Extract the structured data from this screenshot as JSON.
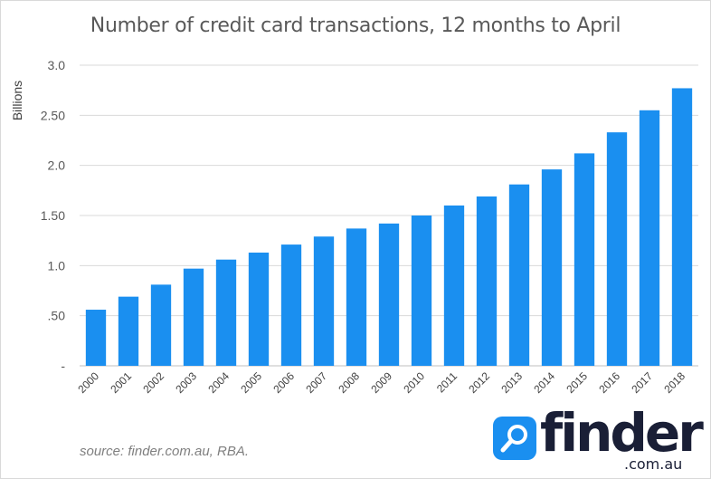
{
  "chart_data": {
    "type": "bar",
    "title": "Number of credit card transactions, 12 months to April",
    "ylabel": "Billions",
    "xlabel": "",
    "categories": [
      "2000",
      "2001",
      "2002",
      "2003",
      "2004",
      "2005",
      "2006",
      "2007",
      "2008",
      "2009",
      "2010",
      "2011",
      "2012",
      "2013",
      "2014",
      "2015",
      "2016",
      "2017",
      "2018"
    ],
    "values": [
      0.56,
      0.69,
      0.81,
      0.97,
      1.06,
      1.13,
      1.21,
      1.29,
      1.37,
      1.42,
      1.5,
      1.6,
      1.69,
      1.81,
      1.96,
      2.12,
      2.33,
      2.55,
      2.77
    ],
    "ylim": [
      0,
      3.0
    ],
    "yticks": [
      0,
      0.5,
      1.0,
      1.5,
      2.0,
      2.5,
      3.0
    ],
    "ytick_labels": [
      "-",
      ".50",
      "1.0",
      "1.50",
      "2.0",
      "2.50",
      "3.0"
    ],
    "grid": true,
    "bar_color": "#1a8ff0",
    "grid_color": "#d9d9d9",
    "axis_color": "#bfbfbf",
    "text_color": "#595959"
  },
  "source_text": "source: finder.com.au, RBA.",
  "logo": {
    "word": "finder",
    "domain": ".com.au",
    "icon": "magnifier-icon",
    "badge_color": "#1a8ff0"
  }
}
